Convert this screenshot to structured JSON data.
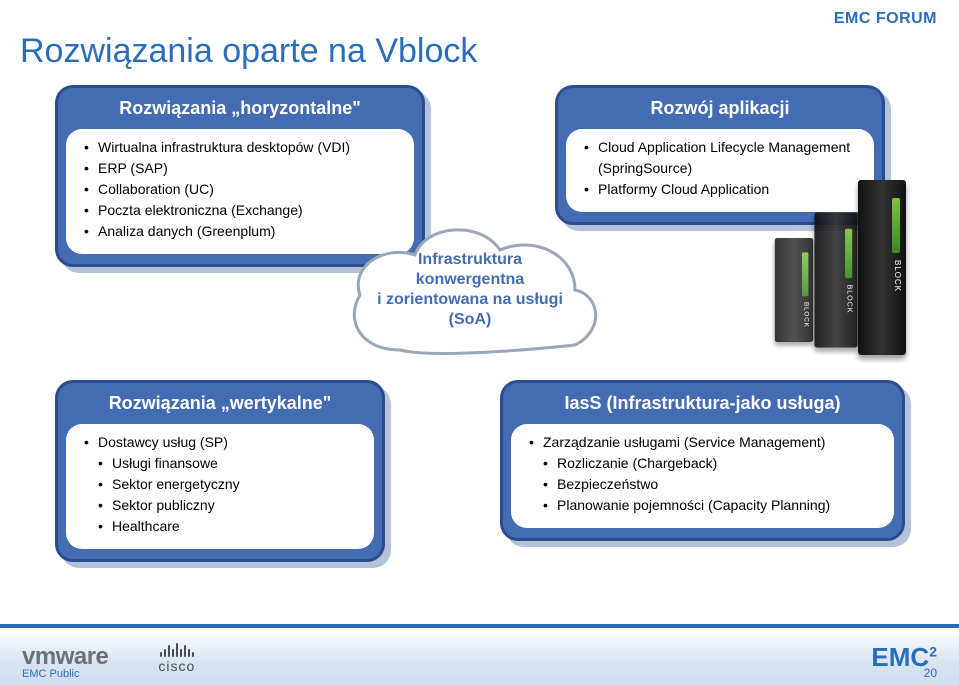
{
  "header": {
    "forum": "EMC FORUM"
  },
  "title": "Rozwiązania oparte na Vblock",
  "cards": {
    "c1": {
      "title": "Rozwiązania „horyzontalne\"",
      "items": [
        "Wirtualna infrastruktura desktopów (VDI)",
        "ERP (SAP)",
        "Collaboration (UC)",
        "Poczta elektroniczna (Exchange)",
        "Analiza danych (Greenplum)"
      ]
    },
    "c2": {
      "title": "Rozwój aplikacji",
      "items": [
        "Cloud Application Lifecycle Management (SpringSource)",
        "Platformy Cloud Application"
      ]
    },
    "c3": {
      "title": "Rozwiązania „wertykalne\"",
      "items": [
        "Dostawcy usług (SP)",
        "Usługi finansowe",
        "Sektor energetyczny",
        "Sektor publiczny",
        "Healthcare"
      ],
      "sub": [
        false,
        true,
        true,
        true,
        true
      ]
    },
    "c4": {
      "title": "IasS (Infrastruktura-jako usługa)",
      "items": [
        "Zarządzanie usługami (Service Management)",
        "Rozliczanie (Chargeback)",
        "Bezpieczeństwo",
        "Planowanie pojemności (Capacity Planning)"
      ],
      "sub": [
        false,
        true,
        true,
        true
      ]
    }
  },
  "cloud": {
    "line1": "Infrastruktura",
    "line2": "konwergentna",
    "line3": "i zorientowana na usługi",
    "line4": "(SoA)",
    "stroke": "#9aa7b8",
    "fill": "#ffffff"
  },
  "servers": {
    "label": "BLOCK"
  },
  "footer": {
    "vmware": "vmware",
    "cisco": "cisco",
    "emc": "EMC",
    "public": "EMC Public",
    "page": "20",
    "cisco_bar_heights": [
      5,
      8,
      12,
      8,
      14,
      8,
      12,
      8,
      5
    ]
  },
  "colors": {
    "accent": "#2a6ebb",
    "card_bg": "#446cb3",
    "card_border": "#2a4d8f"
  }
}
